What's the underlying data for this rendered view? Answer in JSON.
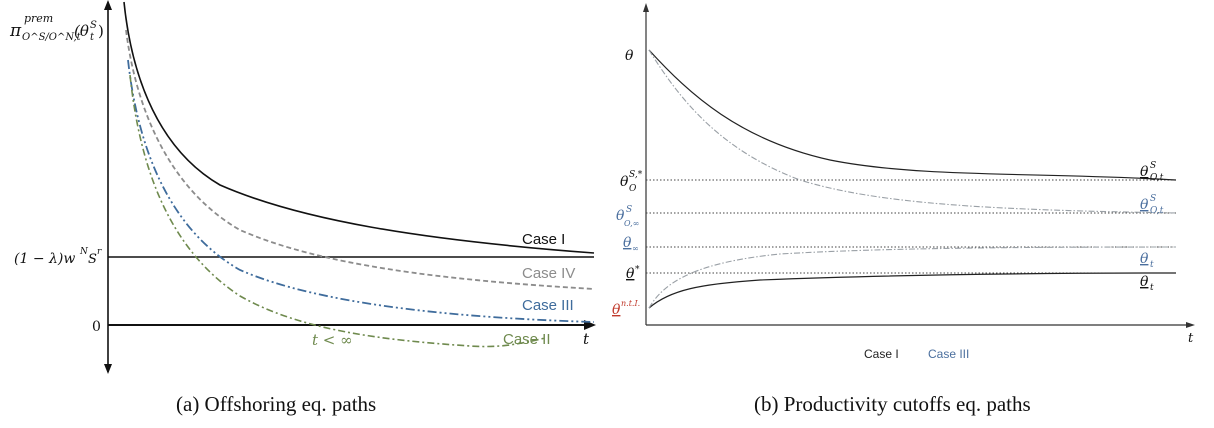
{
  "panel_a": {
    "y_axis_label_main": "π",
    "y_axis_label_sup": "prem",
    "y_axis_label_sub": "O^S/O^N,t",
    "y_axis_label_arg": "(θ",
    "y_axis_label_arg_sup": "S",
    "y_axis_label_arg_sub": "t",
    "y_axis_label_close": ")",
    "x_axis_label": "t",
    "level_label": "(1 − λ)w",
    "level_label_sup": "N",
    "level_label_s": "S",
    "level_label_r": "r",
    "zero_label": "0",
    "t_finite_label": "t < ∞",
    "curves": [
      {
        "label": "Case I",
        "color": "#111111"
      },
      {
        "label": "Case IV",
        "color": "#8c8c8c"
      },
      {
        "label": "Case III",
        "color": "#3f6c9c"
      },
      {
        "label": "Case II",
        "color": "#6f8a4e"
      }
    ],
    "caption": "(a) Offshoring eq. paths"
  },
  "panel_b": {
    "y_top_label": "θ",
    "x_axis_label": "t",
    "left_labels": {
      "theta_star": "θ",
      "theta_star_sup": "S,*",
      "theta_star_sub": "O",
      "theta_inf": "θ",
      "theta_inf_sup": "S",
      "theta_inf_sub": "O,∞",
      "theta_low_inf": "θ",
      "theta_low_inf_sub": "∞",
      "theta_low_star": "θ",
      "theta_low_star_sup": "*",
      "theta_nt": "θ",
      "theta_nt_sup": "n.t.I."
    },
    "right_labels": {
      "r1": "θ",
      "r1_sup": "S",
      "r1_sub": "O,t",
      "r2": "θ",
      "r2_sup": "S",
      "r2_sub": "O,t",
      "r3": "θ",
      "r3_sub": "t",
      "r4": "θ",
      "r4_sub": "t"
    },
    "colors": {
      "case1": "#222222",
      "case3": "#4b6f9e",
      "nt_label": "#c0392b"
    },
    "legend": [
      "Case I",
      "Case III"
    ],
    "caption": "(b) Productivity cutoffs eq. paths"
  }
}
